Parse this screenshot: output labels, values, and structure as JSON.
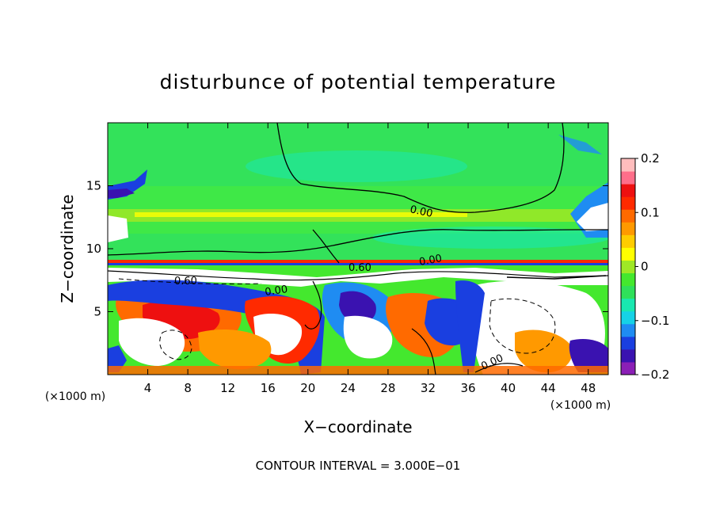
{
  "chart_data": {
    "type": "heatmap",
    "title": "disturbunce of potential temperature",
    "xlabel": "X−coordinate",
    "ylabel": "Z−coordinate",
    "x_unit": "(×1000 m)",
    "x_unit_right": "(×1000 m)",
    "xlim": [
      0,
      50
    ],
    "ylim": [
      0,
      20
    ],
    "x_ticks": [
      4,
      8,
      12,
      16,
      20,
      24,
      28,
      32,
      36,
      40,
      44,
      48
    ],
    "y_ticks": [
      5,
      10,
      15
    ],
    "colorbar": {
      "range": [
        -0.2,
        0.2
      ],
      "ticks": [
        "0.2",
        "0.1",
        "0",
        "−0.1",
        "−0.2"
      ],
      "colors": [
        "#8b1fb6",
        "#3a12b0",
        "#1a3fe0",
        "#1f8cf2",
        "#16d2e6",
        "#19e8b0",
        "#2fe05a",
        "#44e82e",
        "#9fe825",
        "#ffff00",
        "#ffcc00",
        "#ff9900",
        "#ff6a00",
        "#ff2a00",
        "#ee1010",
        "#ff6e8a",
        "#ffbdbd"
      ]
    },
    "contour_labels": [
      "0.00",
      "0.00",
      "0.60",
      "0.60",
      "0.00",
      "0.00"
    ],
    "contour_interval_text": "CONTOUR INTERVAL = 3.000E−01"
  }
}
